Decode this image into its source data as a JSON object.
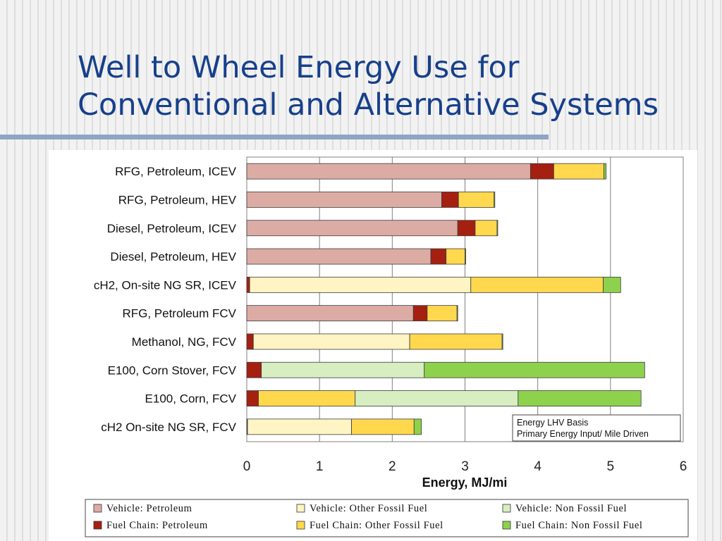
{
  "slide": {
    "title_line1": "Well to Wheel Energy Use for",
    "title_line2": "Conventional and Alternative Systems"
  },
  "chart_data": {
    "type": "bar",
    "orientation": "horizontal",
    "stacked": true,
    "title": "",
    "xlabel": "Energy, MJ/mi",
    "ylabel": "",
    "xlim": [
      0,
      6
    ],
    "xticks": [
      "0",
      "1",
      "2",
      "3",
      "4",
      "5",
      "6"
    ],
    "grid": "vertical",
    "categories": [
      "RFG, Petroleum, ICEV",
      "RFG, Petroleum, HEV",
      "Diesel, Petroleum, ICEV",
      "Diesel, Petroleum, HEV",
      "cH2, On-site NG SR, ICEV",
      "RFG, Petroleum FCV",
      "Methanol, NG, FCV",
      "E100, Corn Stover, FCV",
      "E100, Corn, FCV",
      "cH2 On-site NG SR, FCV"
    ],
    "series": [
      {
        "name": "Vehicle: Petroleum",
        "color": "#dcaca4",
        "values": [
          3.9,
          2.68,
          2.9,
          2.53,
          0,
          2.29,
          0,
          0,
          0,
          0
        ]
      },
      {
        "name": "Fuel Chain: Petroleum",
        "color": "#a52010",
        "values": [
          0.32,
          0.23,
          0.24,
          0.21,
          0.04,
          0.19,
          0.09,
          0.2,
          0.16,
          0.01
        ]
      },
      {
        "name": "Vehicle: Other Fossil Fuel",
        "color": "#fff4c4",
        "values": [
          0,
          0,
          0,
          0,
          3.04,
          0,
          2.15,
          0,
          0,
          1.43
        ]
      },
      {
        "name": "Fuel Chain: Other Fossil Fuel",
        "color": "#ffd84e",
        "values": [
          0.69,
          0.49,
          0.3,
          0.26,
          1.82,
          0.41,
          1.27,
          0,
          1.33,
          0.86
        ]
      },
      {
        "name": "Vehicle: Non Fossil Fuel",
        "color": "#d6eec0",
        "values": [
          0,
          0,
          0,
          0,
          0,
          0,
          0,
          2.24,
          2.24,
          0
        ]
      },
      {
        "name": "Fuel Chain: Non Fossil Fuel",
        "color": "#8ed14c",
        "values": [
          0.03,
          0.01,
          0.01,
          0.01,
          0.24,
          0.01,
          0.01,
          3.03,
          1.69,
          0.1
        ]
      }
    ],
    "legend_position": "bottom",
    "annotation": {
      "line1": "Energy LHV Basis",
      "line2": "Primary Energy Input/ Mile Driven"
    }
  }
}
